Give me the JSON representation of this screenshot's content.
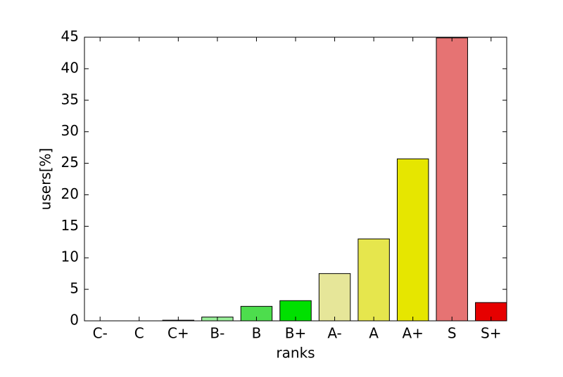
{
  "chart_data": {
    "type": "bar",
    "xlabel": "ranks",
    "ylabel": "users[%]",
    "categories": [
      "C-",
      "C",
      "C+",
      "B-",
      "B",
      "B+",
      "A-",
      "A",
      "A+",
      "S",
      "S+"
    ],
    "values": [
      0,
      0,
      0.1,
      0.6,
      2.3,
      3.2,
      7.5,
      13,
      25.7,
      44.9,
      2.9
    ],
    "colors": [
      "#b0b0b0",
      "#b0b0b0",
      "#606060",
      "#99ee99",
      "#4ddd4d",
      "#00e000",
      "#e6e699",
      "#e6e64d",
      "#e6e600",
      "#e67373",
      "#e60000"
    ],
    "ylim": [
      0,
      45
    ],
    "yticks": [
      0,
      5,
      10,
      15,
      20,
      25,
      30,
      35,
      40,
      45
    ]
  }
}
